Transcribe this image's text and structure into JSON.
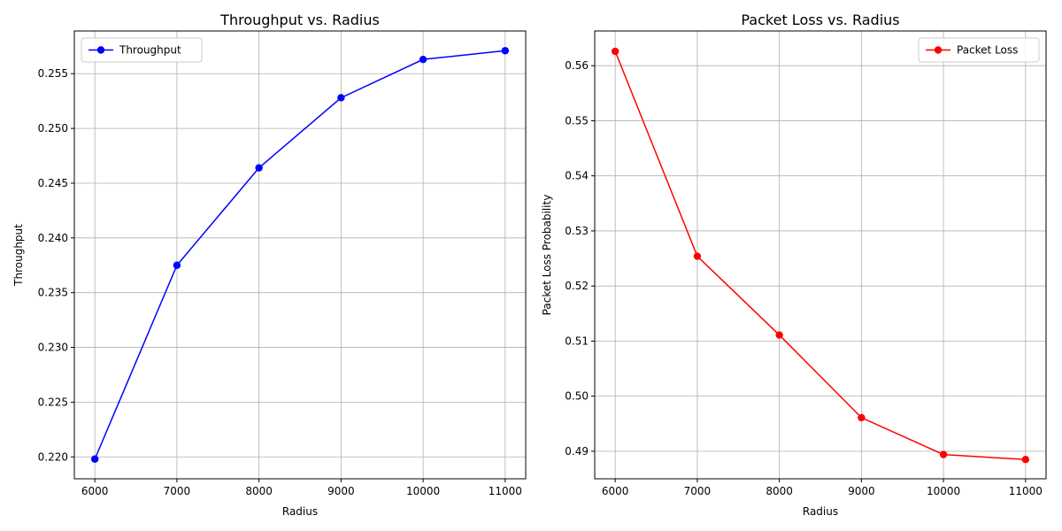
{
  "chart_data": [
    {
      "type": "line",
      "title": "Throughput vs. Radius",
      "xlabel": "Radius",
      "ylabel": "Throughput",
      "x": [
        6000,
        7000,
        8000,
        9000,
        10000,
        11000
      ],
      "xticks": [
        "6000",
        "7000",
        "8000",
        "9000",
        "10000",
        "11000"
      ],
      "yticks": [
        "0.220",
        "0.225",
        "0.230",
        "0.235",
        "0.240",
        "0.245",
        "0.250",
        "0.255"
      ],
      "ytick_values": [
        0.22,
        0.225,
        0.23,
        0.235,
        0.24,
        0.245,
        0.25,
        0.255
      ],
      "xlim": [
        5750,
        11250
      ],
      "ylim": [
        0.218,
        0.2589
      ],
      "grid": true,
      "legend_position": "top-left",
      "series": [
        {
          "name": "Throughput",
          "color": "#0000ff",
          "marker": "circle",
          "values": [
            0.2198,
            0.2375,
            0.2464,
            0.2528,
            0.2563,
            0.2571
          ]
        }
      ]
    },
    {
      "type": "line",
      "title": "Packet Loss vs. Radius",
      "xlabel": "Radius",
      "ylabel": "Packet Loss Probability",
      "x": [
        6000,
        7000,
        8000,
        9000,
        10000,
        11000
      ],
      "xticks": [
        "6000",
        "7000",
        "8000",
        "9000",
        "10000",
        "11000"
      ],
      "yticks": [
        "0.49",
        "0.50",
        "0.51",
        "0.52",
        "0.53",
        "0.54",
        "0.55",
        "0.56"
      ],
      "ytick_values": [
        0.49,
        0.5,
        0.51,
        0.52,
        0.53,
        0.54,
        0.55,
        0.56
      ],
      "xlim": [
        5750,
        11250
      ],
      "ylim": [
        0.485,
        0.5663
      ],
      "grid": true,
      "legend_position": "top-right",
      "series": [
        {
          "name": "Packet Loss",
          "color": "#ff0000",
          "marker": "circle",
          "values": [
            0.5626,
            0.5254,
            0.5111,
            0.4961,
            0.4894,
            0.4885
          ]
        }
      ]
    }
  ]
}
